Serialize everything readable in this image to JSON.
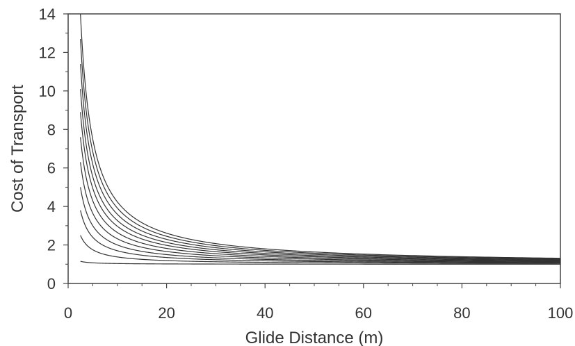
{
  "chart_data": {
    "type": "line",
    "title": "",
    "xlabel": "Glide Distance (m)",
    "ylabel": "Cost of Transport",
    "xlim": [
      0,
      100
    ],
    "ylim": [
      0,
      14
    ],
    "xticks": [
      0,
      20,
      40,
      60,
      80,
      100
    ],
    "xtick_labels": [
      "0",
      "20",
      "40",
      "60",
      "80",
      "100"
    ],
    "yticks": [
      0,
      2,
      4,
      6,
      8,
      10,
      12,
      14
    ],
    "ytick_labels": [
      "0",
      "2",
      "4",
      "6",
      "8",
      "10",
      "12",
      "14"
    ],
    "grid": false,
    "legend": "none",
    "line_color": "#333333",
    "x_start": 2.5,
    "x_end": 100,
    "series": [
      {
        "values_at": {
          "2.5": 1.15,
          "100": 1.0
        }
      },
      {
        "values_at": {
          "2.5": 2.5,
          "100": 1.04
        }
      },
      {
        "values_at": {
          "2.5": 3.8,
          "100": 1.07
        }
      },
      {
        "values_at": {
          "2.5": 5.0,
          "100": 1.1
        }
      },
      {
        "values_at": {
          "2.5": 6.3,
          "100": 1.13
        }
      },
      {
        "values_at": {
          "2.5": 7.6,
          "100": 1.16
        }
      },
      {
        "values_at": {
          "2.5": 8.9,
          "100": 1.19
        }
      },
      {
        "values_at": {
          "2.5": 10.1,
          "100": 1.22
        }
      },
      {
        "values_at": {
          "2.5": 11.4,
          "100": 1.25
        }
      },
      {
        "values_at": {
          "2.5": 12.7,
          "100": 1.28
        }
      },
      {
        "values_at": {
          "2.5": 14.0,
          "100": 1.31
        }
      }
    ]
  }
}
